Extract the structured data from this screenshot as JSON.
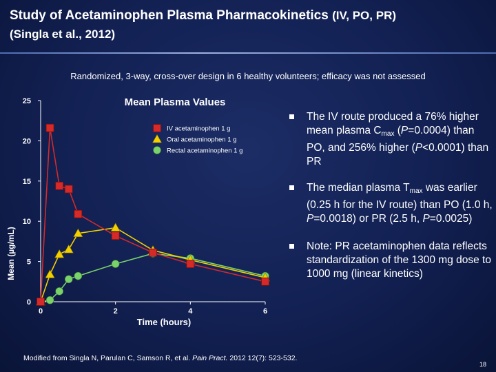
{
  "slide": {
    "title_main": "Study of Acetaminophen Plasma Pharmacokinetics",
    "title_routes": "(IV, PO, PR)",
    "subtitle": "(Singla et al., 2012)",
    "design_text": "Randomized, 3-way, cross-over design in 6 healthy volunteers; efficacy was not assessed",
    "bullets": [
      {
        "a": "The IV route produced a 76% higher mean plasma C",
        "sub": "max",
        "b": " (",
        "i1": "P",
        "c": "=0.0004) than PO, and 256% higher (",
        "i2": "P",
        "d": "<0.0001) than PR"
      },
      {
        "a": "The median plasma T",
        "sub": "max",
        "b": " was earlier (0.25 h for the IV route) than PO (1.0 h, ",
        "i1": "P",
        "c": "=0.0018) or PR (2.5 h, ",
        "i2": "P",
        "d": "=0.0025)"
      },
      {
        "text": "Note: PR acetaminophen data reflects standardization of the 1300 mg dose to 1000 mg (linear kinetics)"
      }
    ],
    "citation_pre": "Modified from Singla N, Parulan C, Samson R, et al. ",
    "citation_journal": "Pain Pract.",
    "citation_post": " 2012 12(7): 523-532.",
    "page_number": "18"
  },
  "chart_data": {
    "type": "line",
    "title": "Mean Plasma Values",
    "xlabel": "Time (hours)",
    "ylabel": "Mean (µg/mL)",
    "xlim": [
      0,
      6
    ],
    "ylim": [
      0,
      25
    ],
    "xticks": [
      0,
      2,
      4,
      6
    ],
    "yticks": [
      0,
      5,
      10,
      15,
      20,
      25
    ],
    "grid": false,
    "legend_position": "top-right",
    "series": [
      {
        "name": "IV acetaminophen 1 g",
        "color": "#d42a2a",
        "marker": "square",
        "x": [
          0,
          0.25,
          0.5,
          0.75,
          1,
          2,
          3,
          4,
          6
        ],
        "y": [
          0,
          21.6,
          14.4,
          14,
          10.9,
          8.2,
          6.1,
          4.7,
          2.5
        ]
      },
      {
        "name": "Oral acetaminophen 1 g",
        "color": "#f2d000",
        "marker": "triangle",
        "x": [
          0,
          0.25,
          0.5,
          0.75,
          1,
          2,
          3,
          4,
          6
        ],
        "y": [
          0,
          3.4,
          5.9,
          6.5,
          8.5,
          9.2,
          6.4,
          5.2,
          3.0
        ]
      },
      {
        "name": "Rectal acetaminophen 1 g",
        "color": "#7ad36a",
        "marker": "circle",
        "x": [
          0,
          0.25,
          0.5,
          0.75,
          1,
          2,
          3,
          4,
          6
        ],
        "y": [
          0,
          0.2,
          1.3,
          2.8,
          3.2,
          4.7,
          6.0,
          5.4,
          3.2
        ]
      }
    ]
  }
}
